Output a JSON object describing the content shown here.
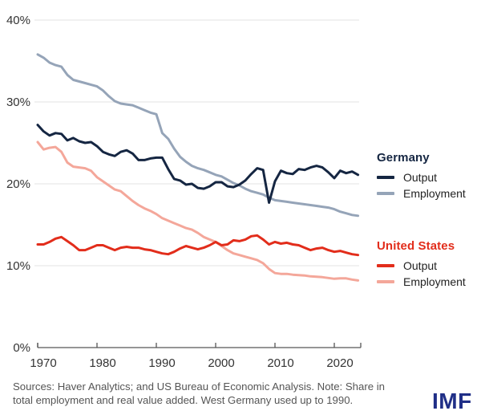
{
  "chart_data": {
    "type": "line",
    "x_label": "",
    "y_label": "",
    "years": [
      1970,
      1971,
      1972,
      1973,
      1974,
      1975,
      1976,
      1977,
      1978,
      1979,
      1980,
      1981,
      1982,
      1983,
      1984,
      1985,
      1986,
      1987,
      1988,
      1989,
      1990,
      1991,
      1992,
      1993,
      1994,
      1995,
      1996,
      1997,
      1998,
      1999,
      2000,
      2001,
      2002,
      2003,
      2004,
      2005,
      2006,
      2007,
      2008,
      2009,
      2010,
      2011,
      2012,
      2013,
      2014,
      2015,
      2016,
      2017,
      2018,
      2019,
      2020,
      2021,
      2022,
      2023,
      2024
    ],
    "x_ticks": [
      1970,
      1980,
      1990,
      2000,
      2010,
      2020
    ],
    "y_ticks": [
      0,
      10,
      20,
      30,
      40
    ],
    "y_tick_suffix": "%",
    "ylim": [
      0,
      40
    ],
    "xlim": [
      1970,
      2024
    ],
    "grid": "horizontal",
    "legend_position": "right",
    "series": [
      {
        "name": "Germany Output",
        "color": "#152642",
        "values": [
          27.2,
          26.4,
          25.9,
          26.2,
          26.1,
          25.3,
          25.6,
          25.2,
          25.0,
          25.1,
          24.6,
          23.9,
          23.6,
          23.4,
          23.9,
          24.1,
          23.7,
          22.9,
          22.9,
          23.1,
          23.2,
          23.2,
          21.8,
          20.6,
          20.4,
          19.9,
          20.0,
          19.5,
          19.4,
          19.7,
          20.2,
          20.2,
          19.7,
          19.6,
          19.9,
          20.4,
          21.2,
          21.9,
          21.7,
          17.7,
          20.3,
          21.6,
          21.3,
          21.2,
          21.8,
          21.7,
          22.0,
          22.2,
          22.0,
          21.4,
          20.7,
          21.6,
          21.3,
          21.5,
          21.1
        ]
      },
      {
        "name": "Germany Employment",
        "color": "#95a4b8",
        "values": [
          35.8,
          35.4,
          34.8,
          34.5,
          34.3,
          33.3,
          32.7,
          32.5,
          32.3,
          32.1,
          31.9,
          31.4,
          30.7,
          30.1,
          29.8,
          29.7,
          29.6,
          29.3,
          29.0,
          28.7,
          28.5,
          26.2,
          25.5,
          24.3,
          23.3,
          22.7,
          22.2,
          21.9,
          21.7,
          21.4,
          21.1,
          20.9,
          20.5,
          20.1,
          19.8,
          19.4,
          19.1,
          18.9,
          18.7,
          18.3,
          18.0,
          17.9,
          17.8,
          17.7,
          17.6,
          17.5,
          17.4,
          17.3,
          17.2,
          17.1,
          16.9,
          16.6,
          16.4,
          16.2,
          16.1
        ]
      },
      {
        "name": "United States Output",
        "color": "#e22d1b",
        "values": [
          12.6,
          12.6,
          12.9,
          13.3,
          13.5,
          13.0,
          12.5,
          11.9,
          11.9,
          12.2,
          12.5,
          12.5,
          12.2,
          11.9,
          12.2,
          12.3,
          12.2,
          12.2,
          12.0,
          11.9,
          11.7,
          11.5,
          11.4,
          11.7,
          12.1,
          12.4,
          12.2,
          12.0,
          12.2,
          12.5,
          12.9,
          12.5,
          12.6,
          13.1,
          13.0,
          13.2,
          13.6,
          13.7,
          13.2,
          12.6,
          12.9,
          12.7,
          12.8,
          12.6,
          12.5,
          12.2,
          11.9,
          12.1,
          12.2,
          11.9,
          11.7,
          11.8,
          11.6,
          11.4,
          11.3
        ]
      },
      {
        "name": "United States Employment",
        "color": "#f4a79a",
        "values": [
          25.1,
          24.2,
          24.4,
          24.5,
          23.9,
          22.6,
          22.1,
          22.0,
          21.9,
          21.6,
          20.8,
          20.3,
          19.8,
          19.3,
          19.1,
          18.5,
          17.9,
          17.4,
          17.0,
          16.7,
          16.3,
          15.8,
          15.5,
          15.2,
          14.9,
          14.6,
          14.4,
          14.0,
          13.5,
          13.2,
          12.9,
          12.4,
          11.9,
          11.5,
          11.3,
          11.1,
          10.9,
          10.7,
          10.3,
          9.6,
          9.1,
          9.0,
          9.0,
          8.9,
          8.85,
          8.8,
          8.7,
          8.65,
          8.6,
          8.5,
          8.4,
          8.45,
          8.45,
          8.3,
          8.2
        ]
      }
    ]
  },
  "legend": {
    "germany": {
      "title": "Germany",
      "color": "#152642",
      "items": [
        {
          "label": "Output",
          "color": "#152642"
        },
        {
          "label": "Employment",
          "color": "#95a4b8"
        }
      ]
    },
    "united_states": {
      "title": "United States",
      "color": "#e22d1b",
      "items": [
        {
          "label": "Output",
          "color": "#e22d1b"
        },
        {
          "label": "Employment",
          "color": "#f4a79a"
        }
      ]
    }
  },
  "footer": {
    "source_line1": "Sources: Haver Analytics; and US Bureau of Economic Analysis. Note: Share in",
    "source_line2": "total employment and real value added. West Germany used up to 1990.",
    "logo": "IMF",
    "logo_color": "#202f87"
  },
  "style": {
    "grid_color": "#e3e3e3",
    "axis_color": "#565656",
    "tick_label_color": "#333333"
  }
}
